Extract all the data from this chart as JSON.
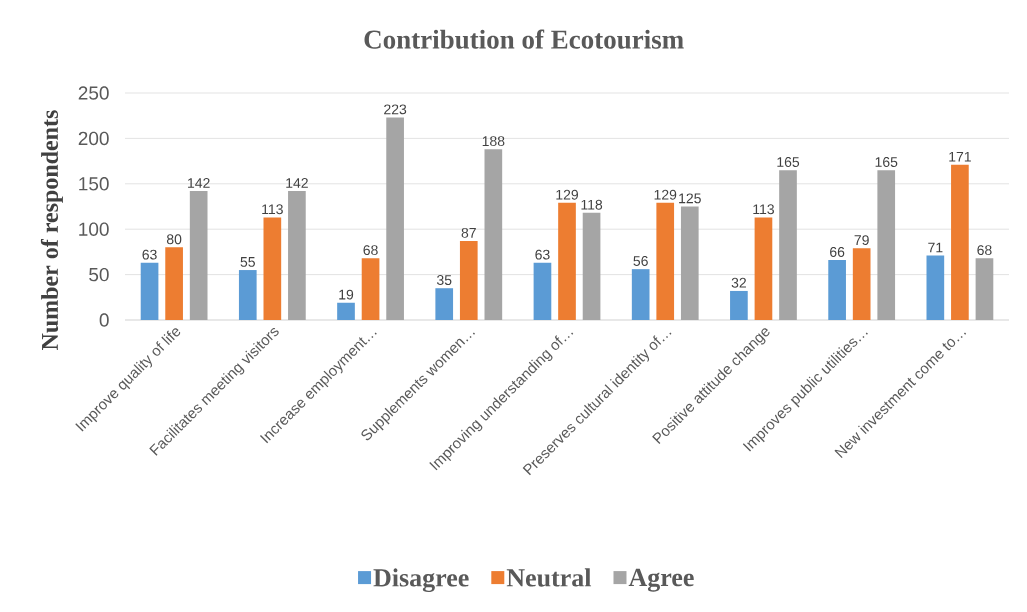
{
  "chart_data": {
    "type": "bar",
    "title": "Contribution of Ecotourism",
    "ylabel": "Number of respondents",
    "categories": [
      "Improve quality of life",
      "Facilitates meeting visitors",
      "Increase employment…",
      "Supplements women…",
      "Improving understanding of…",
      "Preserves cultural identity of…",
      "Positive attitude change",
      "Improves public utilities…",
      "New investment come to…"
    ],
    "series": [
      {
        "name": "Disagree",
        "color": "#5b9bd5",
        "values": [
          63,
          55,
          19,
          35,
          63,
          56,
          32,
          66,
          71
        ]
      },
      {
        "name": "Neutral",
        "color": "#ed7d31",
        "values": [
          80,
          113,
          68,
          87,
          129,
          129,
          113,
          79,
          171
        ]
      },
      {
        "name": "Agree",
        "color": "#a5a5a5",
        "values": [
          142,
          142,
          223,
          188,
          118,
          125,
          165,
          165,
          68
        ]
      }
    ],
    "ylim": [
      0,
      250
    ],
    "yticks": [
      0,
      50,
      100,
      150,
      200,
      250
    ],
    "grid": "y",
    "legend": "bottom",
    "data_labels": true
  }
}
